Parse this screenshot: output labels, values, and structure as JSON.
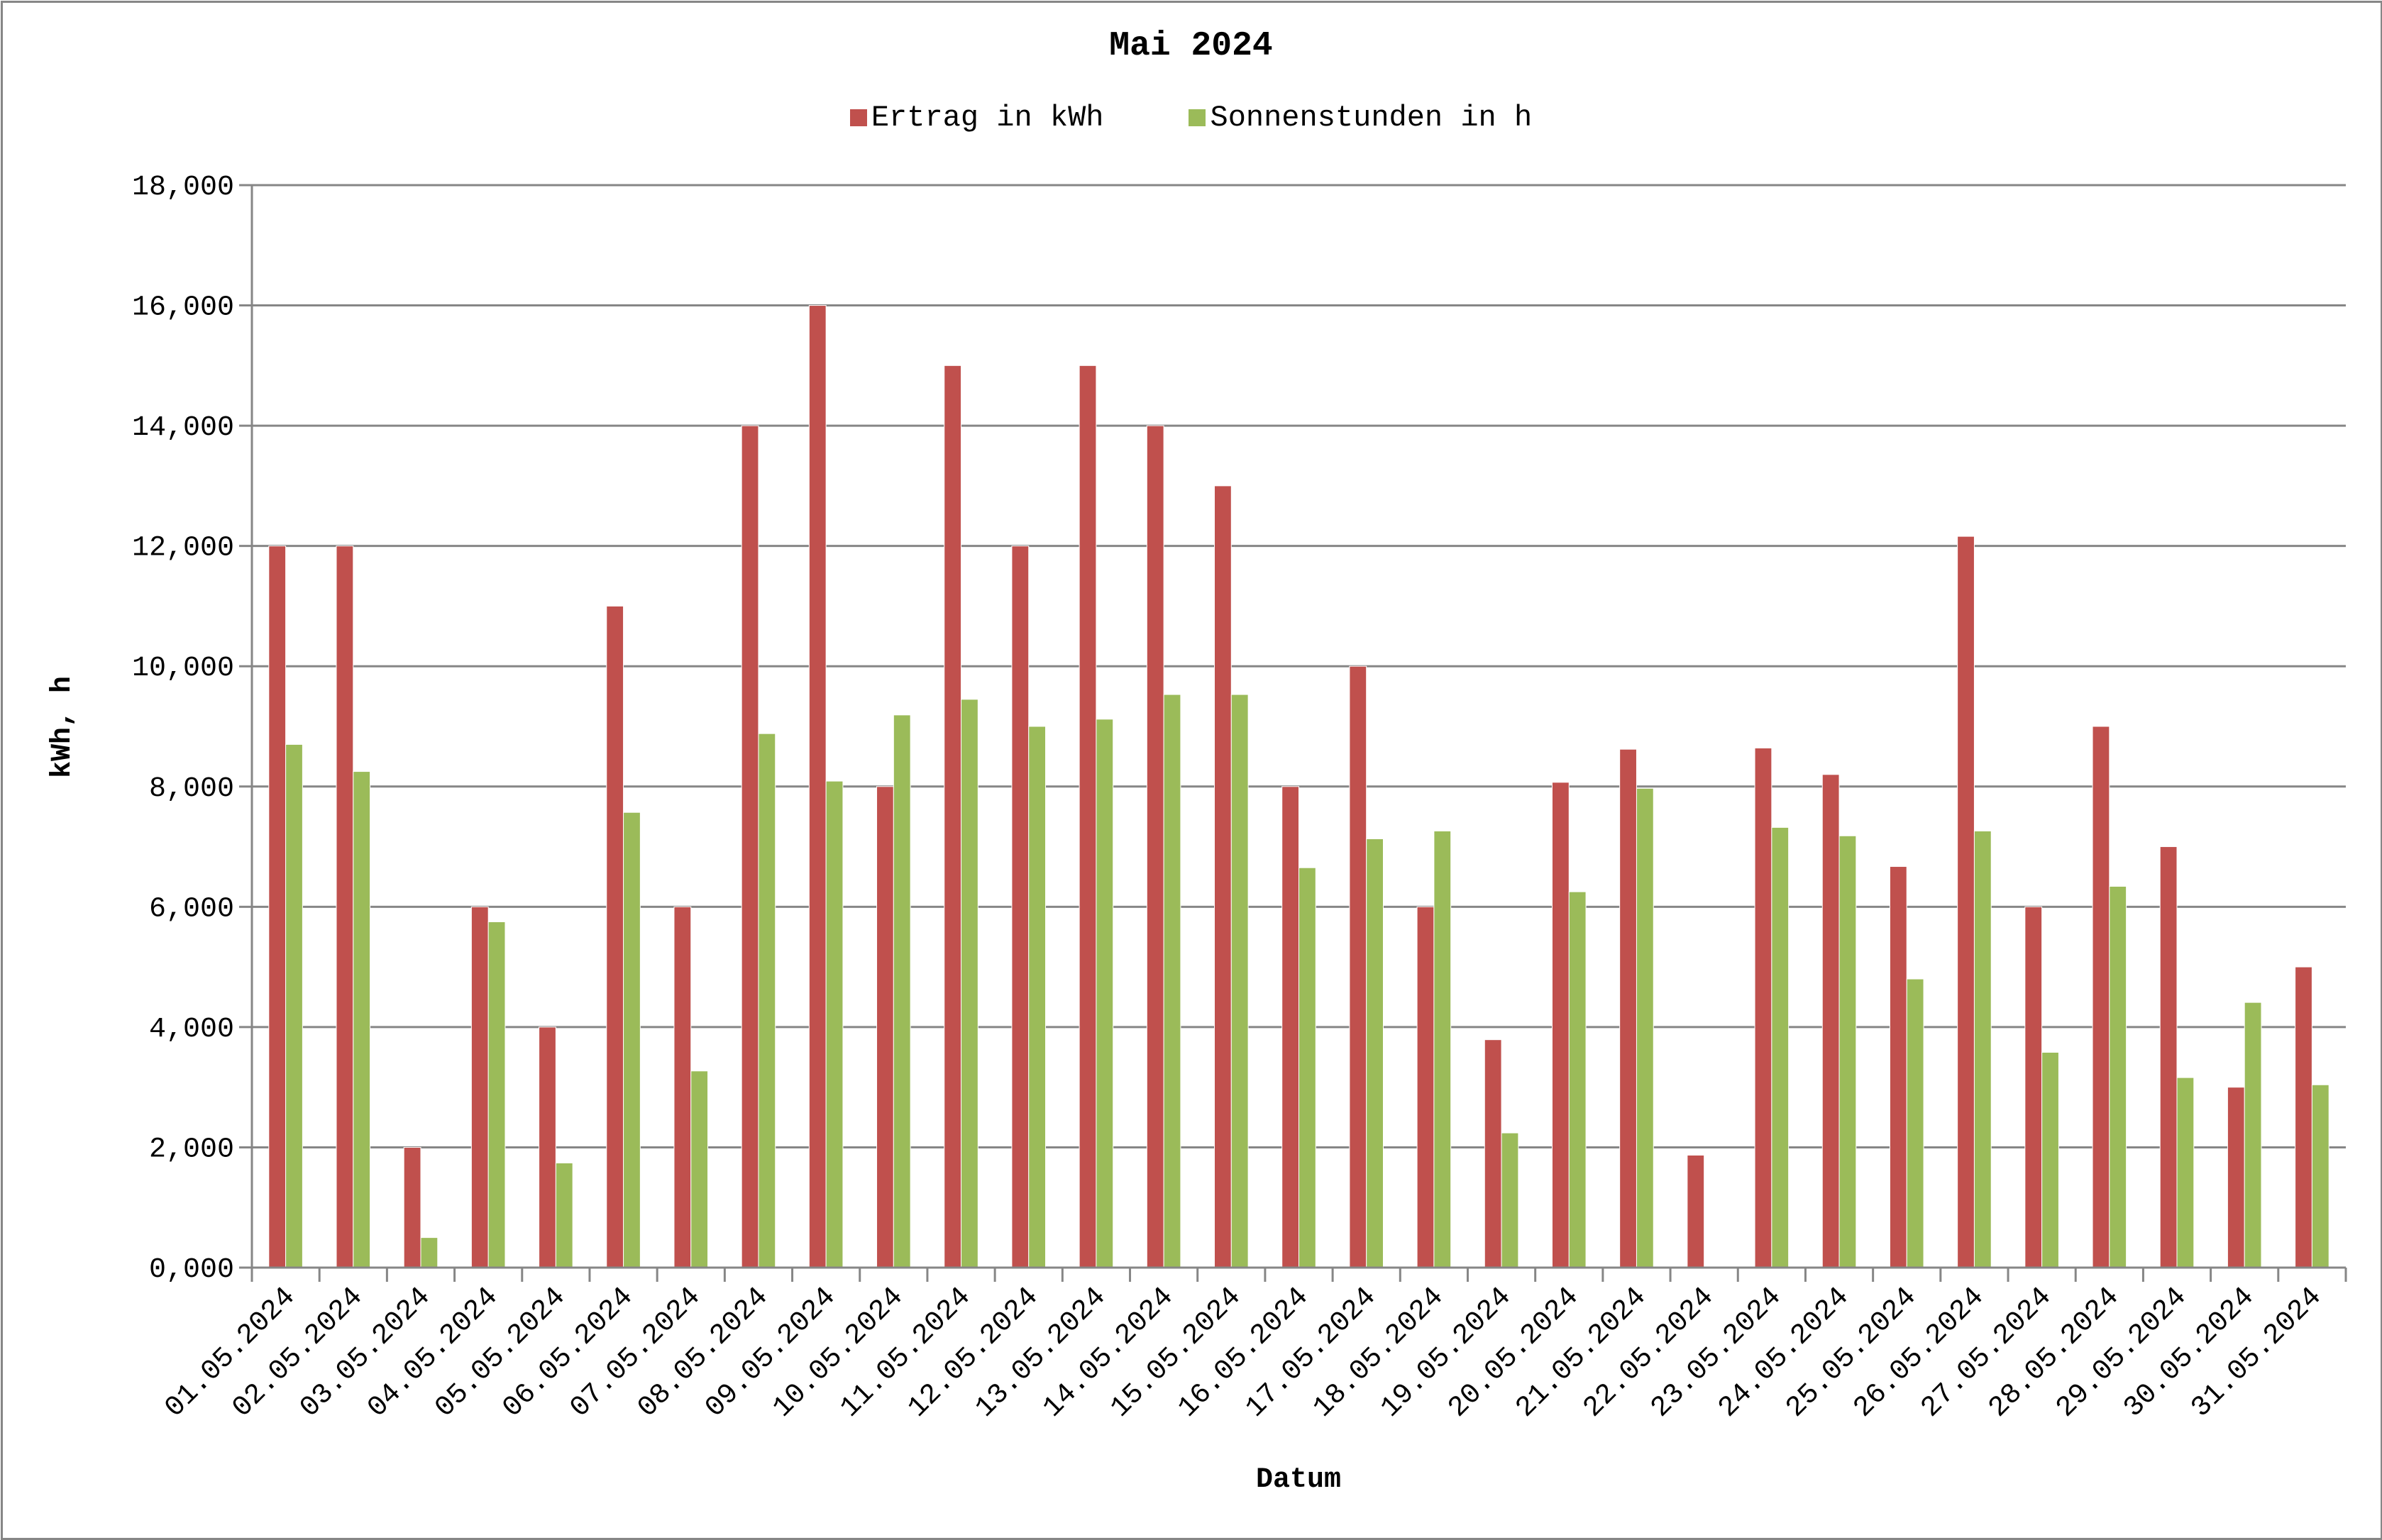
{
  "chart_data": {
    "type": "bar",
    "title": "Mai 2024",
    "xlabel": "Datum",
    "ylabel": "kWh, h",
    "ylim": [
      0,
      18
    ],
    "yticks": [
      "0,000",
      "2,000",
      "4,000",
      "6,000",
      "8,000",
      "10,000",
      "12,000",
      "14,000",
      "16,000",
      "18,000"
    ],
    "grid": true,
    "legend_position": "top",
    "categories": [
      "01.05.2024",
      "02.05.2024",
      "03.05.2024",
      "04.05.2024",
      "05.05.2024",
      "06.05.2024",
      "07.05.2024",
      "08.05.2024",
      "09.05.2024",
      "10.05.2024",
      "11.05.2024",
      "12.05.2024",
      "13.05.2024",
      "14.05.2024",
      "15.05.2024",
      "16.05.2024",
      "17.05.2024",
      "18.05.2024",
      "19.05.2024",
      "20.05.2024",
      "21.05.2024",
      "22.05.2024",
      "23.05.2024",
      "24.05.2024",
      "25.05.2024",
      "26.05.2024",
      "27.05.2024",
      "28.05.2024",
      "29.05.2024",
      "30.05.2024",
      "31.05.2024"
    ],
    "series": [
      {
        "name": "Ertrag in kWh",
        "color": "#C0504D",
        "values": [
          12.0,
          12.0,
          2.0,
          6.0,
          4.0,
          11.0,
          6.0,
          14.0,
          16.0,
          8.0,
          15.0,
          12.0,
          15.0,
          14.0,
          13.0,
          8.0,
          10.0,
          6.0,
          3.79,
          8.07,
          8.62,
          1.87,
          8.64,
          8.2,
          6.67,
          12.16,
          6.0,
          9.0,
          7.0,
          3.0,
          5.0
        ]
      },
      {
        "name": "Sonnenstunden in h",
        "color": "#9BBB59",
        "values": [
          8.7,
          8.25,
          0.5,
          5.75,
          1.74,
          7.57,
          3.27,
          8.88,
          8.09,
          9.19,
          9.45,
          9.0,
          9.12,
          9.53,
          9.53,
          6.65,
          7.13,
          7.26,
          2.24,
          6.25,
          7.97,
          0.0,
          7.32,
          7.18,
          4.8,
          7.26,
          3.58,
          6.34,
          3.16,
          4.41,
          3.04
        ]
      }
    ]
  },
  "colors": {
    "axis": "#868686",
    "gridline": "#868686",
    "text": "#000000"
  }
}
